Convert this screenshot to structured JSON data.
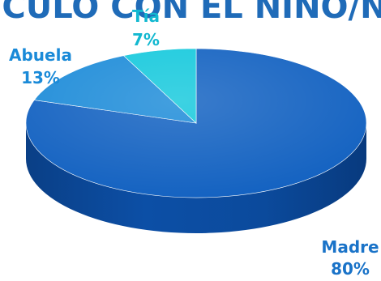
{
  "chart_data": {
    "type": "pie",
    "style": "3d",
    "title": "VÍNCULO CON EL NIÑO/NIÑA",
    "categories": [
      "Madre",
      "Abuela",
      "Tía"
    ],
    "values": [
      80,
      13,
      7
    ],
    "value_labels": [
      "80%",
      "13%",
      "7%"
    ],
    "colors": [
      "#0f5fc0",
      "#1a8ad8",
      "#12c8dc"
    ],
    "label_colors": [
      "#1a73c8",
      "#1a8ad8",
      "#12b8d0"
    ],
    "legend": "none"
  }
}
